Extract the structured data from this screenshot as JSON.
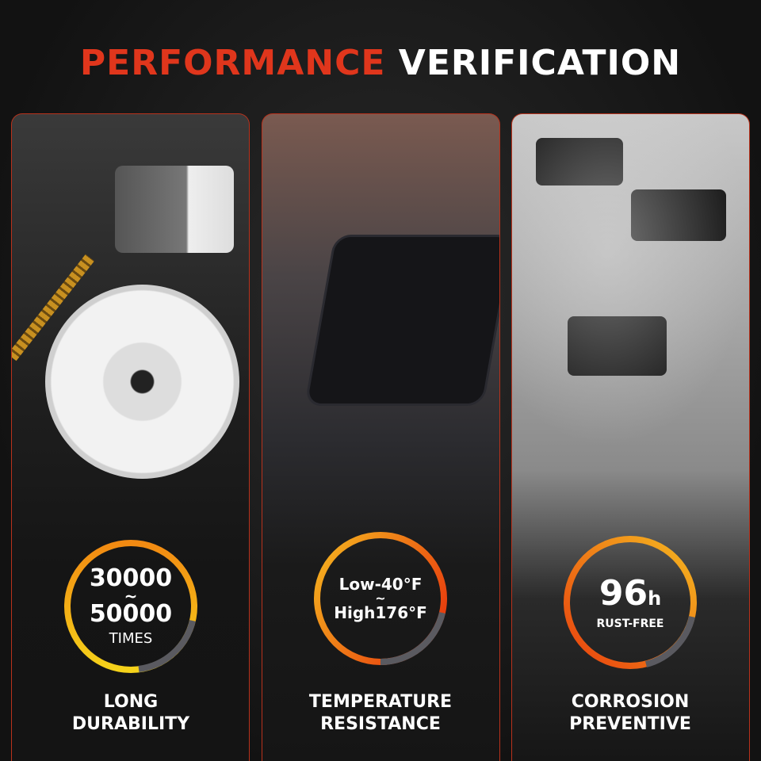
{
  "title": {
    "part1": "PERFORMANCE",
    "part2": "VERIFICATION"
  },
  "colors": {
    "accent_red": "#e0361c",
    "ring_orange": "#f28a12",
    "ring_yellow": "#f5c518",
    "ring_gray": "#5a5a60"
  },
  "features": [
    {
      "line1": "30000",
      "sep": "~",
      "line2": "50000",
      "unit": "TIMES",
      "caption1": "LONG",
      "caption2": "DURABILITY"
    },
    {
      "line1": "Low-40°F",
      "sep": "~",
      "line2": "High176°F",
      "caption1": "TEMPERATURE",
      "caption2": "RESISTANCE"
    },
    {
      "value": "96",
      "unit_small": "h",
      "sub": "RUST-FREE",
      "caption1": "CORROSION",
      "caption2": "PREVENTIVE"
    }
  ]
}
